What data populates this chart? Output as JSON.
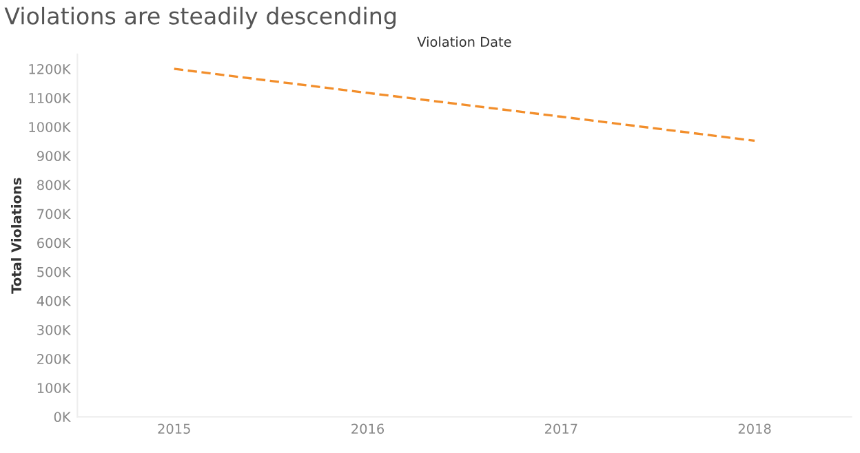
{
  "chart_data": {
    "type": "line",
    "title": "Violations are steadily descending",
    "xlabel": "Violation Date",
    "ylabel": "Total Violations",
    "categories": [
      "2015",
      "2016",
      "2017",
      "2018"
    ],
    "series": [
      {
        "color": "#f28e2b",
        "values": [
          1200000,
          1117000,
          1035000,
          952000
        ]
      }
    ],
    "line_style": "dashed",
    "marker": "none",
    "grid": false,
    "legend": false,
    "ylim": [
      0,
      1250000
    ],
    "yticks": [
      {
        "value": 0,
        "label": "0K"
      },
      {
        "value": 100000,
        "label": "100K"
      },
      {
        "value": 200000,
        "label": "200K"
      },
      {
        "value": 300000,
        "label": "300K"
      },
      {
        "value": 400000,
        "label": "400K"
      },
      {
        "value": 500000,
        "label": "500K"
      },
      {
        "value": 600000,
        "label": "600K"
      },
      {
        "value": 700000,
        "label": "700K"
      },
      {
        "value": 800000,
        "label": "800K"
      },
      {
        "value": 900000,
        "label": "900K"
      },
      {
        "value": 1000000,
        "label": "1000K"
      },
      {
        "value": 1100000,
        "label": "1100K"
      },
      {
        "value": 1200000,
        "label": "1200K"
      }
    ]
  }
}
